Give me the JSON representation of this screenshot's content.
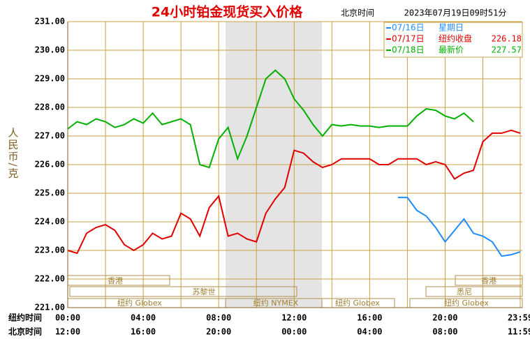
{
  "chart_data": {
    "type": "line",
    "title": "24小时铂金现货买入价格",
    "subtitle_label": "北京时间",
    "subtitle": "2023年07月19日09时51分",
    "ylabel": "人民币/克",
    "x": [
      0,
      0.5,
      1,
      1.5,
      2,
      2.5,
      3,
      3.5,
      4,
      4.5,
      5,
      5.5,
      6,
      6.5,
      7,
      7.5,
      8,
      8.5,
      9,
      9.5,
      10,
      10.5,
      11,
      11.5,
      12,
      12.5,
      13,
      13.5,
      14,
      14.5,
      15,
      15.5,
      16,
      16.5,
      17,
      17.5,
      18,
      18.5,
      19,
      19.5,
      20,
      20.5,
      21,
      21.5,
      22,
      22.5,
      23,
      23.5,
      23.98
    ],
    "xlim": [
      0,
      23.98
    ],
    "xticks": [
      {
        "value": 0,
        "label": "00:00"
      },
      {
        "value": 4,
        "label": "04:00"
      },
      {
        "value": 8,
        "label": "08:00"
      },
      {
        "value": 12,
        "label": "12:00"
      },
      {
        "value": 16,
        "label": "16:00"
      },
      {
        "value": 20,
        "label": "20:00"
      },
      {
        "value": 23.98,
        "label": "23:59"
      }
    ],
    "xticks_beijing": [
      "12:00",
      "16:00",
      "20:00",
      "00:00",
      "04:00",
      "08:00",
      "11:59"
    ],
    "xrow_labels": [
      "纽约时间",
      "北京时间"
    ],
    "ylim": [
      221,
      231
    ],
    "yticks": [
      {
        "value": 221,
        "label": "221.00"
      },
      {
        "value": 222,
        "label": "222.00"
      },
      {
        "value": 223,
        "label": "223.00"
      },
      {
        "value": 224,
        "label": "224.00"
      },
      {
        "value": 225,
        "label": "225.00"
      },
      {
        "value": 226,
        "label": "226.00"
      },
      {
        "value": 227,
        "label": "227.00"
      },
      {
        "value": 228,
        "label": "228.00"
      },
      {
        "value": 229,
        "label": "229.00"
      },
      {
        "value": 230,
        "label": "230.00"
      },
      {
        "value": 231,
        "label": "231.00"
      }
    ],
    "grid": true,
    "series": [
      {
        "name": "07/16日",
        "note": "星期日",
        "color": "#1e8cff",
        "values": [
          null,
          null,
          null,
          null,
          null,
          null,
          null,
          null,
          null,
          null,
          null,
          null,
          null,
          null,
          null,
          null,
          null,
          null,
          null,
          null,
          null,
          null,
          null,
          null,
          null,
          null,
          null,
          null,
          null,
          null,
          null,
          null,
          null,
          null,
          null,
          224.85,
          224.85,
          224.4,
          224.2,
          223.8,
          223.3,
          223.7,
          224.1,
          223.6,
          223.5,
          223.3,
          222.8,
          222.85,
          222.95
        ]
      },
      {
        "name": "07/17日",
        "note": "纽约收盘",
        "legend_value": 226.18,
        "color": "#e00000",
        "values": [
          223.0,
          222.9,
          223.6,
          223.8,
          223.9,
          223.7,
          223.2,
          223.0,
          223.2,
          223.6,
          223.4,
          223.5,
          224.3,
          224.1,
          223.5,
          224.5,
          224.9,
          223.5,
          223.6,
          223.4,
          223.3,
          224.3,
          224.8,
          225.2,
          226.5,
          226.4,
          226.1,
          225.9,
          226.0,
          226.2,
          226.2,
          226.2,
          226.2,
          226.0,
          226.0,
          226.2,
          226.2,
          226.2,
          226.0,
          226.1,
          226.0,
          225.5,
          225.7,
          225.8,
          226.8,
          227.1,
          227.1,
          227.2,
          227.1
        ]
      },
      {
        "name": "07/18日",
        "note": "最新价",
        "legend_value": 227.57,
        "color": "#00b000",
        "values": [
          227.25,
          227.5,
          227.4,
          227.6,
          227.5,
          227.3,
          227.4,
          227.6,
          227.45,
          227.8,
          227.4,
          227.5,
          227.6,
          227.4,
          226.0,
          225.9,
          226.9,
          227.3,
          226.2,
          227.0,
          228.0,
          229.0,
          229.3,
          229.0,
          228.3,
          227.9,
          227.4,
          227.0,
          227.4,
          227.35,
          227.4,
          227.35,
          227.35,
          227.3,
          227.35,
          227.35,
          227.35,
          227.7,
          227.95,
          227.9,
          227.7,
          227.6,
          227.8,
          227.5,
          null,
          null,
          null,
          null,
          null
        ]
      }
    ],
    "sessions": [
      "香港",
      "香港",
      "苏黎世",
      "悉尼",
      "纽约 Globex",
      "纽约 NYMEX",
      "纽约 Globex",
      "纽约 Globex"
    ]
  }
}
